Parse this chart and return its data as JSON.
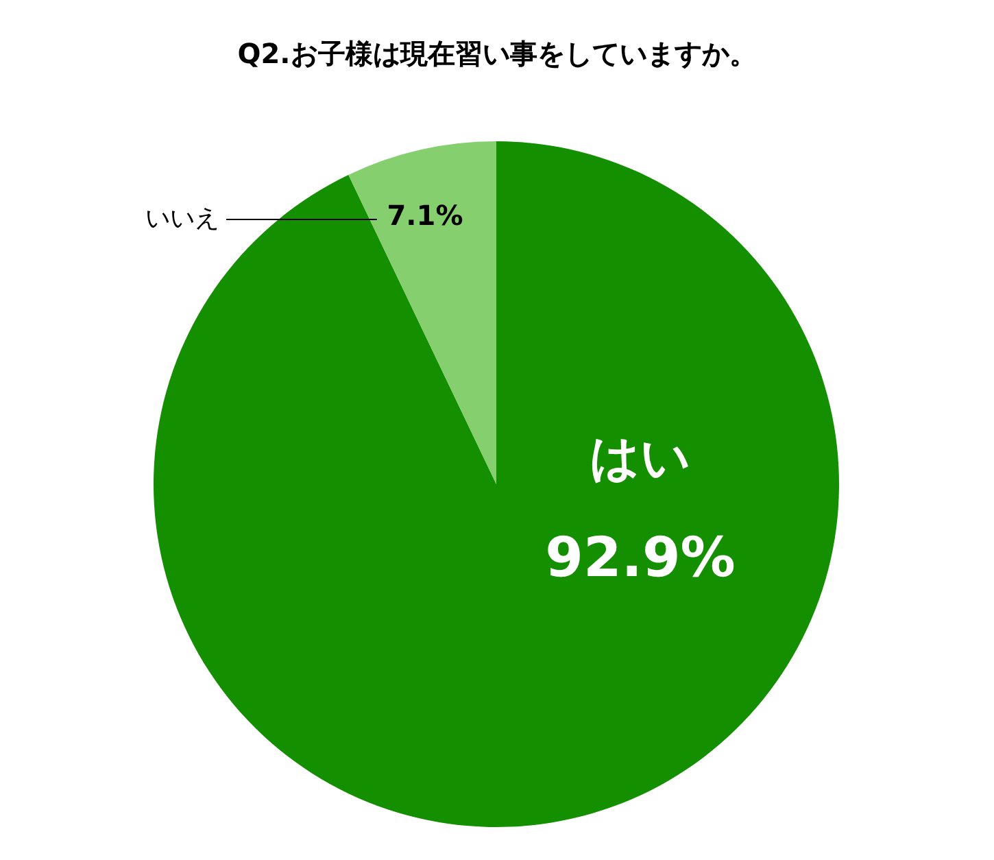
{
  "chart_data": {
    "type": "pie",
    "title": "Q2.お子様は現在習い事をしていますか。",
    "categories": [
      "はい",
      "いいえ"
    ],
    "values": [
      92.9,
      7.1
    ],
    "value_labels": [
      "92.9%",
      "7.1%"
    ],
    "colors": [
      "#138f00",
      "#85cf6f"
    ],
    "legend": false
  }
}
